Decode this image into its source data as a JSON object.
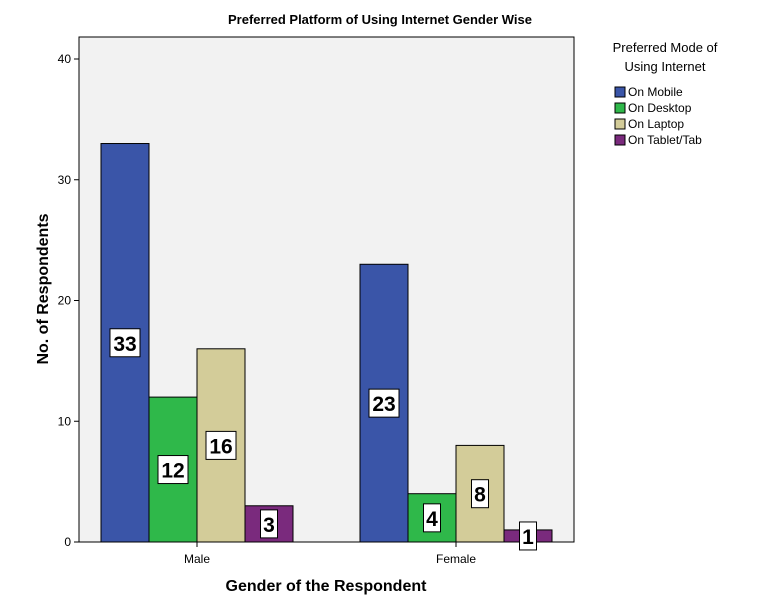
{
  "chart_data": {
    "type": "bar",
    "title": "Preferred Platform of Using Internet Gender Wise",
    "xlabel": "Gender of the Respondent",
    "ylabel": "No. of Respondents",
    "ylim": [
      0,
      40
    ],
    "yticks": [
      0,
      10,
      20,
      30,
      40
    ],
    "categories": [
      "Male",
      "Female"
    ],
    "legend_title": [
      "Preferred Mode of",
      "Using Internet"
    ],
    "legend_position": "right",
    "series": [
      {
        "name": "On Mobile",
        "color": "#3a55a8",
        "values": [
          33,
          23
        ],
        "labels": [
          "33",
          "23"
        ]
      },
      {
        "name": "On Desktop",
        "color": "#2fb84a",
        "values": [
          12,
          4
        ],
        "labels": [
          "12",
          "4"
        ]
      },
      {
        "name": "On Laptop",
        "color": "#d3cc99",
        "values": [
          16,
          8
        ],
        "labels": [
          "16",
          "8"
        ]
      },
      {
        "name": "On Tablet/Tab",
        "color": "#7a2a7d",
        "values": [
          3,
          1
        ],
        "labels": [
          "3",
          "1"
        ]
      }
    ]
  }
}
